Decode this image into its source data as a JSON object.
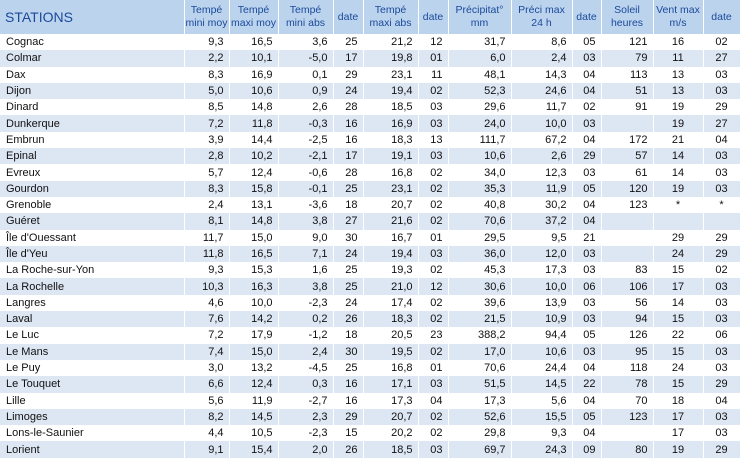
{
  "headers": {
    "stations": "STATIONS",
    "tmin_moy": [
      "Tempé",
      "mini moy"
    ],
    "tmax_moy": [
      "Tempé",
      "maxi moy"
    ],
    "tmin_abs": [
      "Tempé",
      "mini abs"
    ],
    "date1": "date",
    "tmax_abs": [
      "Tempé",
      "maxi abs"
    ],
    "date2": "date",
    "precip": [
      "Précipitat°",
      "mm"
    ],
    "precip_max": [
      "Préci max",
      "24 h"
    ],
    "date3": "date",
    "soleil": [
      "Soleil",
      "heures"
    ],
    "vent": [
      "Vent max",
      "m/s"
    ],
    "date4": "date"
  },
  "rows": [
    [
      "Cognac",
      "9,3",
      "16,5",
      "3,6",
      "25",
      "21,2",
      "12",
      "31,7",
      "8,6",
      "05",
      "121",
      "16",
      "02"
    ],
    [
      "Colmar",
      "2,2",
      "10,1",
      "-5,0",
      "17",
      "19,8",
      "01",
      "6,0",
      "2,4",
      "03",
      "79",
      "11",
      "27"
    ],
    [
      "Dax",
      "8,3",
      "16,9",
      "0,1",
      "29",
      "23,1",
      "11",
      "48,1",
      "14,3",
      "04",
      "113",
      "13",
      "03"
    ],
    [
      "Dijon",
      "5,0",
      "10,6",
      "0,9",
      "24",
      "19,4",
      "02",
      "52,3",
      "24,6",
      "04",
      "51",
      "13",
      "03"
    ],
    [
      "Dinard",
      "8,5",
      "14,8",
      "2,6",
      "28",
      "18,5",
      "03",
      "29,6",
      "11,7",
      "02",
      "91",
      "19",
      "29"
    ],
    [
      "Dunkerque",
      "7,2",
      "11,8",
      "-0,3",
      "16",
      "16,9",
      "03",
      "24,0",
      "10,0",
      "03",
      "",
      "19",
      "27"
    ],
    [
      "Embrun",
      "3,9",
      "14,4",
      "-2,5",
      "16",
      "18,3",
      "13",
      "111,7",
      "67,2",
      "04",
      "172",
      "21",
      "04"
    ],
    [
      "Epinal",
      "2,8",
      "10,2",
      "-2,1",
      "17",
      "19,1",
      "03",
      "10,6",
      "2,6",
      "29",
      "57",
      "14",
      "03"
    ],
    [
      "Evreux",
      "5,7",
      "12,4",
      "-0,6",
      "28",
      "16,8",
      "02",
      "34,0",
      "12,3",
      "03",
      "61",
      "14",
      "03"
    ],
    [
      "Gourdon",
      "8,3",
      "15,8",
      "-0,1",
      "25",
      "23,1",
      "02",
      "35,3",
      "11,9",
      "05",
      "120",
      "19",
      "03"
    ],
    [
      "Grenoble",
      "2,4",
      "13,1",
      "-3,6",
      "18",
      "20,7",
      "02",
      "40,8",
      "30,2",
      "04",
      "123",
      "*",
      "*"
    ],
    [
      "Guéret",
      "8,1",
      "14,8",
      "3,8",
      "27",
      "21,6",
      "02",
      "70,6",
      "37,2",
      "04",
      "",
      "",
      ""
    ],
    [
      "Île d'Ouessant",
      "11,7",
      "15,0",
      "9,0",
      "30",
      "16,7",
      "01",
      "29,5",
      "9,5",
      "21",
      "",
      "29",
      "29"
    ],
    [
      "Île d'Yeu",
      "11,8",
      "16,5",
      "7,1",
      "24",
      "19,4",
      "03",
      "36,0",
      "12,0",
      "03",
      "",
      "24",
      "29"
    ],
    [
      "La Roche-sur-Yon",
      "9,3",
      "15,3",
      "1,6",
      "25",
      "19,3",
      "02",
      "45,3",
      "17,3",
      "03",
      "83",
      "15",
      "02"
    ],
    [
      "La Rochelle",
      "10,3",
      "16,3",
      "3,8",
      "25",
      "21,0",
      "12",
      "30,6",
      "10,0",
      "06",
      "106",
      "17",
      "03"
    ],
    [
      "Langres",
      "4,6",
      "10,0",
      "-2,3",
      "24",
      "17,4",
      "02",
      "39,6",
      "13,9",
      "03",
      "56",
      "14",
      "03"
    ],
    [
      "Laval",
      "7,6",
      "14,2",
      "0,2",
      "26",
      "18,3",
      "02",
      "21,5",
      "10,9",
      "03",
      "94",
      "15",
      "03"
    ],
    [
      "Le Luc",
      "7,2",
      "17,9",
      "-1,2",
      "18",
      "20,5",
      "23",
      "388,2",
      "94,4",
      "05",
      "126",
      "22",
      "06"
    ],
    [
      "Le Mans",
      "7,4",
      "15,0",
      "2,4",
      "30",
      "19,5",
      "02",
      "17,0",
      "10,6",
      "03",
      "95",
      "15",
      "03"
    ],
    [
      "Le Puy",
      "3,0",
      "13,2",
      "-4,5",
      "25",
      "16,8",
      "01",
      "70,6",
      "24,4",
      "04",
      "118",
      "24",
      "03"
    ],
    [
      "Le Touquet",
      "6,6",
      "12,4",
      "0,3",
      "16",
      "17,1",
      "03",
      "51,5",
      "14,5",
      "22",
      "78",
      "15",
      "29"
    ],
    [
      "Lille",
      "5,6",
      "11,9",
      "-2,7",
      "16",
      "17,3",
      "04",
      "17,3",
      "5,6",
      "04",
      "70",
      "18",
      "04"
    ],
    [
      "Limoges",
      "8,2",
      "14,5",
      "2,3",
      "29",
      "20,7",
      "02",
      "52,6",
      "15,5",
      "05",
      "123",
      "17",
      "03"
    ],
    [
      "Lons-le-Saunier",
      "4,4",
      "10,5",
      "-2,3",
      "15",
      "20,2",
      "02",
      "29,8",
      "9,3",
      "04",
      "",
      "17",
      "03"
    ],
    [
      "Lorient",
      "9,1",
      "15,4",
      "2,0",
      "26",
      "18,5",
      "03",
      "69,7",
      "24,3",
      "09",
      "80",
      "19",
      "29"
    ]
  ]
}
